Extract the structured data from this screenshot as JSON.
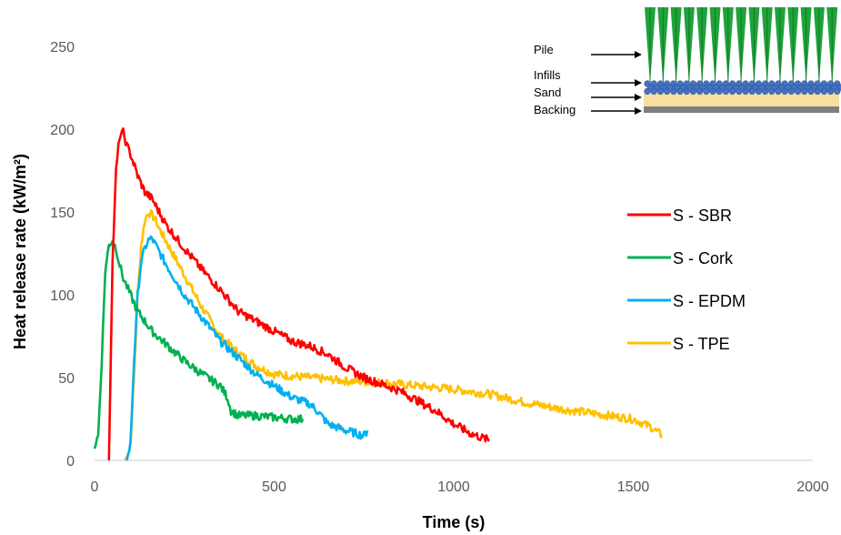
{
  "chart_data": {
    "type": "line",
    "title": "",
    "xlabel": "Time (s)",
    "ylabel": "Heat release rate (kW/m²)",
    "xlim": [
      0,
      2000
    ],
    "ylim": [
      0,
      250
    ],
    "x_ticks": [
      "0",
      "500",
      "1000",
      "1500",
      "2000"
    ],
    "y_ticks": [
      "0",
      "50",
      "100",
      "150",
      "200",
      "250"
    ],
    "grid": false,
    "legend_position": "right",
    "series": [
      {
        "name": "S - SBR",
        "color": "#ff0000",
        "x": [
          40,
          50,
          60,
          70,
          80,
          90,
          100,
          120,
          140,
          160,
          180,
          200,
          250,
          300,
          350,
          400,
          450,
          500,
          550,
          600,
          650,
          700,
          750,
          800,
          850,
          900,
          950,
          1000,
          1050,
          1100
        ],
        "y": [
          0,
          120,
          175,
          196,
          198,
          190,
          185,
          172,
          162,
          158,
          150,
          142,
          128,
          115,
          103,
          90,
          84,
          78,
          72,
          69,
          64,
          56,
          50,
          46,
          42,
          36,
          30,
          22,
          16,
          12
        ]
      },
      {
        "name": "S - Cork",
        "color": "#00b050",
        "x": [
          0,
          10,
          20,
          30,
          40,
          50,
          60,
          70,
          80,
          90,
          100,
          120,
          140,
          160,
          200,
          250,
          300,
          350,
          370,
          380,
          400,
          450,
          500,
          550,
          580
        ],
        "y": [
          8,
          15,
          60,
          115,
          130,
          133,
          128,
          118,
          110,
          105,
          100,
          90,
          84,
          78,
          70,
          60,
          52,
          45,
          38,
          30,
          27,
          27,
          26,
          25,
          25
        ]
      },
      {
        "name": "S - EPDM",
        "color": "#00b0f0",
        "x": [
          90,
          100,
          110,
          120,
          130,
          140,
          150,
          160,
          170,
          200,
          250,
          300,
          350,
          400,
          450,
          500,
          550,
          600,
          620,
          650,
          700,
          750,
          760
        ],
        "y": [
          0,
          10,
          60,
          100,
          120,
          128,
          133,
          134,
          130,
          118,
          100,
          86,
          72,
          62,
          52,
          45,
          38,
          34,
          30,
          22,
          18,
          15,
          18
        ]
      },
      {
        "name": "S - TPE",
        "color": "#ffc000",
        "x": [
          85,
          95,
          100,
          110,
          120,
          130,
          140,
          150,
          160,
          170,
          180,
          200,
          250,
          300,
          350,
          400,
          450,
          500,
          600,
          700,
          800,
          900,
          1000,
          1100,
          1200,
          1300,
          1400,
          1500,
          1550,
          1580
        ],
        "y": [
          0,
          5,
          10,
          50,
          100,
          130,
          145,
          150,
          148,
          145,
          140,
          132,
          112,
          92,
          75,
          65,
          57,
          52,
          50,
          48,
          47,
          45,
          43,
          40,
          35,
          31,
          28,
          25,
          20,
          15
        ]
      }
    ],
    "inset": {
      "labels": [
        "Pile",
        "Infills",
        "Sand",
        "Backing"
      ]
    }
  }
}
